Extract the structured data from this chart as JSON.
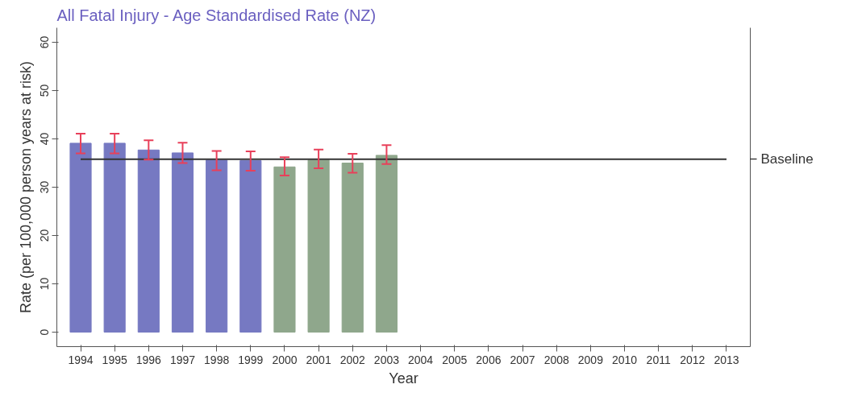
{
  "chart_data": {
    "type": "bar",
    "title": "All Fatal Injury - Age Standardised Rate (NZ)",
    "xlabel": "Year",
    "ylabel": "Rate (per 100,000 person years at risk)",
    "categories": [
      "1994",
      "1995",
      "1996",
      "1997",
      "1998",
      "1999",
      "2000",
      "2001",
      "2002",
      "2003",
      "2004",
      "2005",
      "2006",
      "2007",
      "2008",
      "2009",
      "2010",
      "2011",
      "2012",
      "2013"
    ],
    "values": [
      39.1,
      39.1,
      37.7,
      37.1,
      35.6,
      35.5,
      34.2,
      35.6,
      35.0,
      36.6,
      null,
      null,
      null,
      null,
      null,
      null,
      null,
      null,
      null,
      null
    ],
    "colors": [
      "#7679c2",
      "#7679c2",
      "#7679c2",
      "#7679c2",
      "#7679c2",
      "#7679c2",
      "#8fa78c",
      "#8fa78c",
      "#8fa78c",
      "#8fa78c",
      "#7679c2",
      "#7679c2",
      "#7679c2",
      "#7679c2",
      "#7679c2",
      "#7679c2",
      "#7679c2",
      "#7679c2",
      "#7679c2",
      "#7679c2"
    ],
    "errors": [
      [
        37.0,
        41.1
      ],
      [
        37.0,
        41.1
      ],
      [
        35.7,
        39.7
      ],
      [
        35.0,
        39.2
      ],
      [
        33.5,
        37.5
      ],
      [
        33.4,
        37.4
      ],
      [
        32.4,
        36.2
      ],
      [
        33.9,
        37.8
      ],
      [
        33.0,
        36.9
      ],
      [
        34.8,
        38.7
      ],
      null,
      null,
      null,
      null,
      null,
      null,
      null,
      null,
      null,
      null
    ],
    "ylim": [
      -3,
      63
    ],
    "yticks": [
      0,
      10,
      20,
      30,
      40,
      50,
      60
    ],
    "ref_lines": [
      {
        "axis": "y",
        "value": 35.8,
        "label": "Baseline",
        "color": "#333333",
        "line_style": "solid"
      }
    ],
    "grid": false
  }
}
